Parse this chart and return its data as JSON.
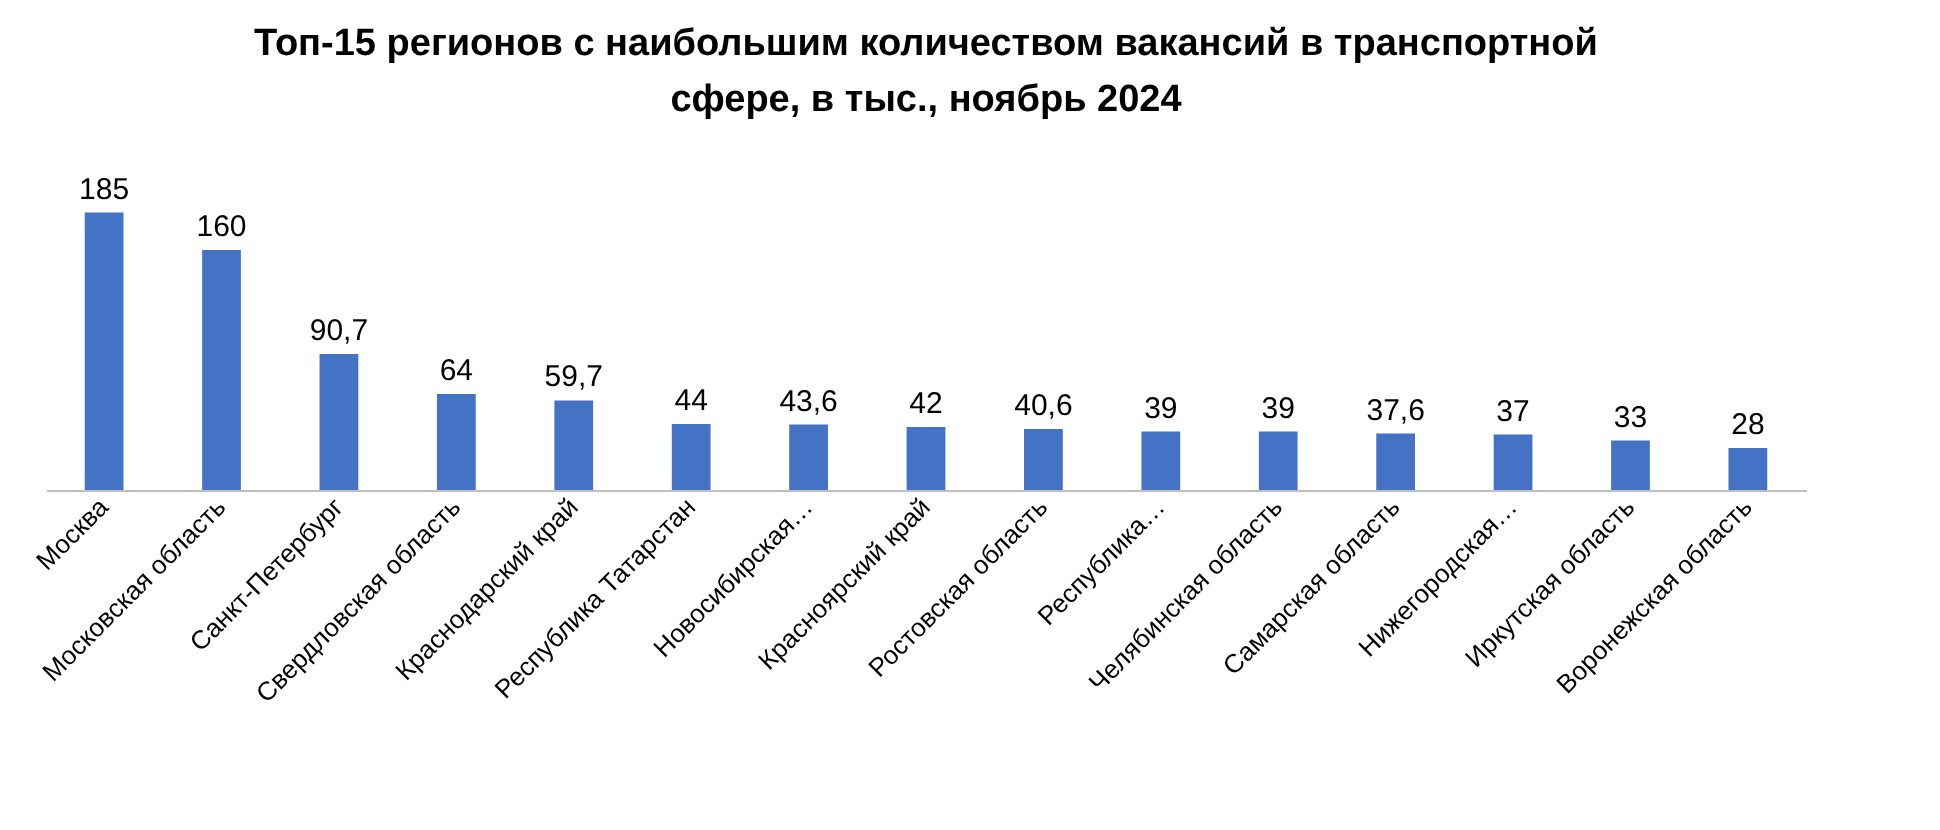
{
  "chart_data": {
    "type": "bar",
    "title": "Топ-15 регионов с наибольшим количеством вакансий в транспортной сфере, в тыс., ноябрь 2024",
    "categories": [
      "Москва",
      "Московская область",
      "Санкт-Петербург",
      "Свердловская область",
      "Краснодарский край",
      "Республика Татарстан",
      "Новосибирская…",
      "Красноярский край",
      "Ростовская область",
      "Республика…",
      "Челябинская область",
      "Самарская область",
      "Нижегородская…",
      "Иркутская область",
      "Воронежская область"
    ],
    "values": [
      185,
      160,
      90.7,
      64,
      59.7,
      44,
      43.6,
      42,
      40.6,
      39,
      39,
      37.6,
      37,
      33,
      28
    ],
    "value_labels": [
      "185",
      "160",
      "90,7",
      "64",
      "59,7",
      "44",
      "43,6",
      "42",
      "40,6",
      "39",
      "39",
      "37,6",
      "37",
      "33",
      "28"
    ],
    "color": "#4472c4"
  }
}
